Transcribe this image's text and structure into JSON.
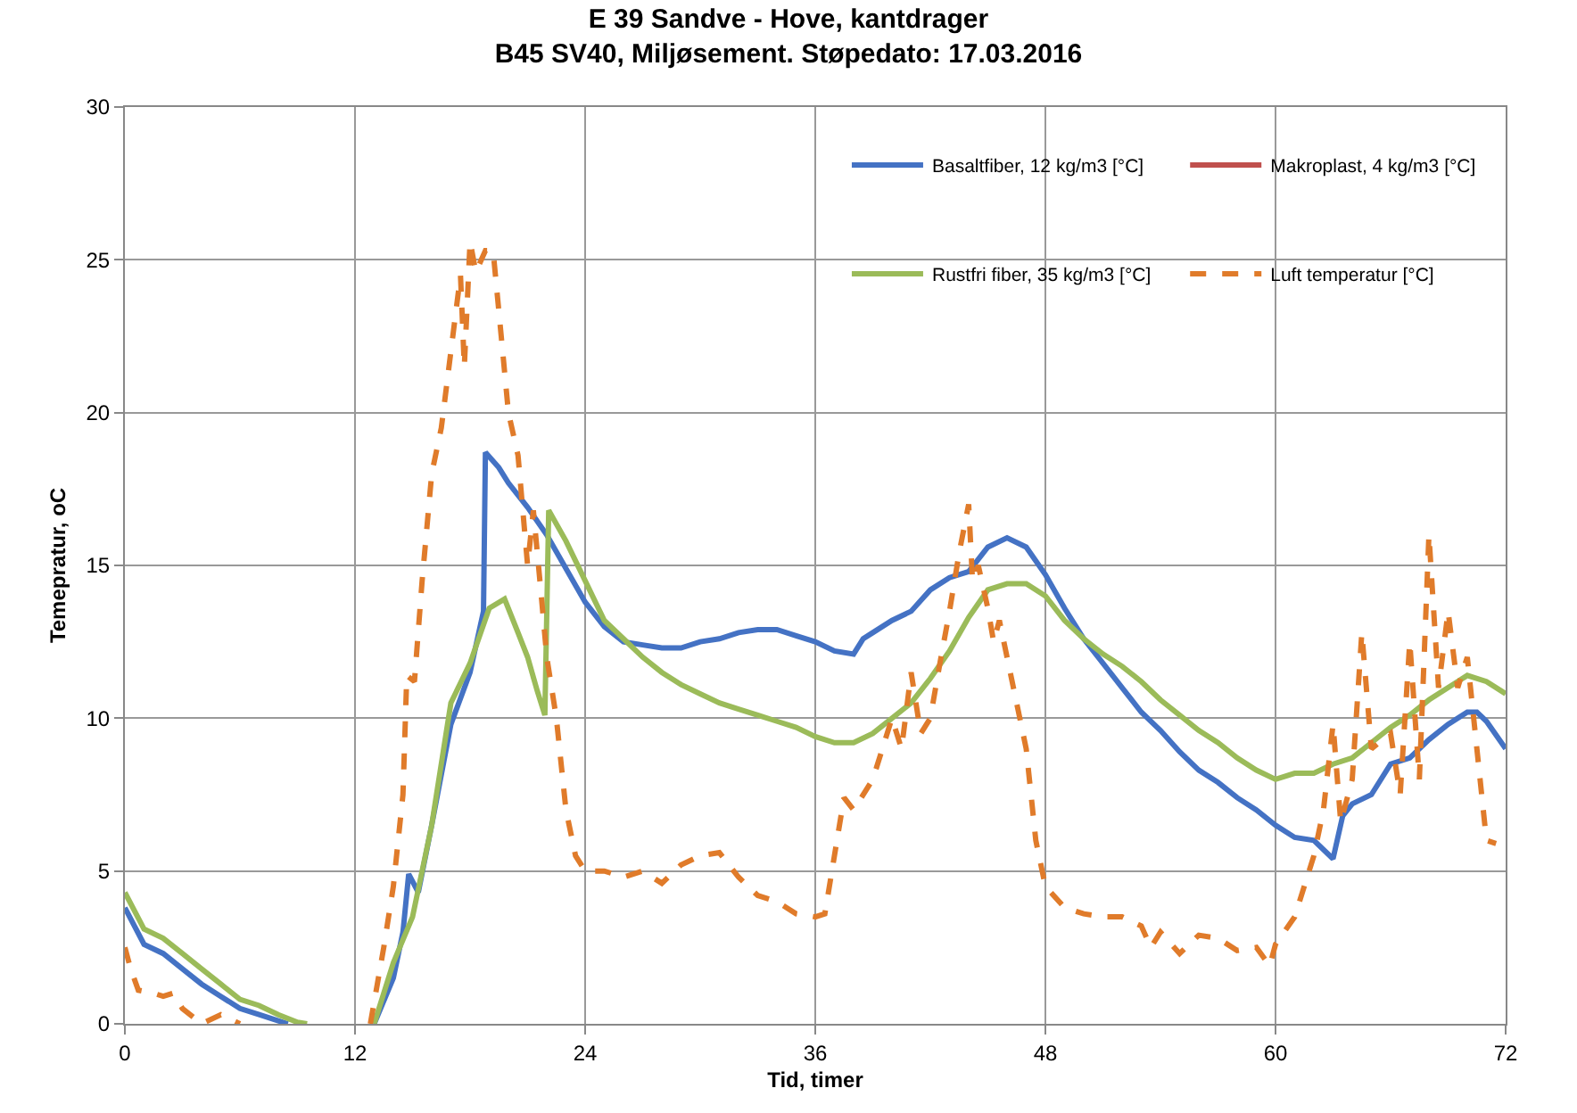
{
  "chart_data": {
    "type": "line",
    "title": "E 39 Sandve - Hove, kantdrager",
    "subtitle": "B45 SV40, Miljøsement. Støpedato: 17.03.2016",
    "xlabel": "Tid, timer",
    "ylabel": "Temepratur, oC",
    "xlim": [
      0,
      72
    ],
    "xticks": [
      0,
      12,
      24,
      36,
      48,
      60,
      72
    ],
    "ylim": [
      0,
      30
    ],
    "yticks": [
      0,
      5,
      10,
      15,
      20,
      25,
      30
    ],
    "grid": true,
    "legend": "top right",
    "marker": "none",
    "series": [
      {
        "name": "Basaltfiber, 12 kg/m3 [°C]",
        "color": "#4472c4",
        "line_style": "solid",
        "x": [
          0,
          1,
          2,
          3,
          4,
          5,
          6,
          7,
          8,
          8.5,
          9,
          13,
          14,
          14.5,
          14.8,
          15.3,
          16,
          17,
          18,
          18.7,
          18.8,
          19.5,
          20,
          21,
          22,
          23,
          24,
          25,
          26,
          27,
          28,
          29,
          30,
          31,
          32,
          33,
          34,
          35,
          36,
          37,
          38,
          38.5,
          39,
          40,
          41,
          42,
          43,
          44,
          45,
          46,
          47,
          48,
          49,
          50,
          51,
          52,
          53,
          54,
          55,
          56,
          57,
          58,
          59,
          60,
          61,
          62,
          63,
          63.5,
          64,
          65,
          66,
          67,
          68,
          69,
          70,
          70.5,
          71,
          72
        ],
        "values": [
          3.8,
          2.6,
          2.3,
          1.8,
          1.3,
          0.9,
          0.5,
          0.3,
          0.1,
          0,
          null,
          0,
          1.5,
          3,
          4.9,
          4.3,
          6.5,
          9.8,
          11.5,
          13.5,
          18.7,
          18.2,
          17.7,
          16.9,
          16,
          14.9,
          13.8,
          13,
          12.5,
          12.4,
          12.3,
          12.3,
          12.5,
          12.6,
          12.8,
          12.9,
          12.9,
          12.7,
          12.5,
          12.2,
          12.1,
          12.6,
          12.8,
          13.2,
          13.5,
          14.2,
          14.6,
          14.8,
          15.6,
          15.9,
          15.6,
          14.7,
          13.6,
          12.6,
          11.8,
          11,
          10.2,
          9.6,
          8.9,
          8.3,
          7.9,
          7.4,
          7,
          6.5,
          6.1,
          6,
          5.4,
          6.8,
          7.2,
          7.5,
          8.5,
          8.7,
          9.3,
          9.8,
          10.2,
          10.2,
          9.9,
          9
        ]
      },
      {
        "name": "Makroplast, 4 kg/m3 [°C]",
        "color": "#c0504d",
        "line_style": "solid",
        "values": [
          null
        ]
      },
      {
        "name": "Rustfri fiber, 35 kg/m3 [°C]",
        "color": "#9bbb59",
        "line_style": "solid",
        "x": [
          0,
          1,
          2,
          3,
          4,
          5,
          6,
          7,
          8,
          9,
          9.5,
          10,
          13,
          14,
          15,
          16,
          17,
          18,
          19,
          19.8,
          20.5,
          21,
          21.5,
          21.9,
          22.1,
          23,
          24,
          25,
          26,
          27,
          28,
          29,
          30,
          31,
          32,
          33,
          34,
          35,
          36,
          37,
          38,
          39,
          40,
          41,
          42,
          43,
          44,
          45,
          46,
          47,
          48,
          49,
          50,
          51,
          52,
          53,
          54,
          55,
          56,
          57,
          58,
          59,
          60,
          61,
          62,
          63,
          64,
          65,
          66,
          67,
          68,
          69,
          70,
          71,
          72
        ],
        "values": [
          4.3,
          3.1,
          2.8,
          2.3,
          1.8,
          1.3,
          0.8,
          0.6,
          0.3,
          0.05,
          0,
          null,
          0,
          2,
          3.5,
          6.5,
          10.5,
          11.8,
          13.6,
          13.9,
          12.8,
          12,
          10.9,
          10.1,
          16.8,
          15.8,
          14.5,
          13.2,
          12.6,
          12,
          11.5,
          11.1,
          10.8,
          10.5,
          10.3,
          10.1,
          9.9,
          9.7,
          9.4,
          9.2,
          9.2,
          9.5,
          10,
          10.5,
          11.3,
          12.2,
          13.3,
          14.2,
          14.4,
          14.4,
          14,
          13.2,
          12.6,
          12.1,
          11.7,
          11.2,
          10.6,
          10.1,
          9.6,
          9.2,
          8.7,
          8.3,
          8,
          8.2,
          8.2,
          8.5,
          8.7,
          9.2,
          9.7,
          10.1,
          10.6,
          11,
          11.4,
          11.2,
          10.8
        ]
      },
      {
        "name": "Luft temperatur [°C]",
        "color": "#e07b2a",
        "line_style": "dashed",
        "x": [
          0,
          0.3,
          0.7,
          1.5,
          2,
          2.5,
          3,
          4,
          5,
          6,
          6.5,
          12.8,
          13.5,
          14,
          14.5,
          14.7,
          15.1,
          15.5,
          16,
          16.5,
          17,
          17.5,
          17.7,
          18,
          18.3,
          18.8,
          19.2,
          19.7,
          20,
          20.5,
          21,
          21.3,
          21.7,
          22,
          22.5,
          23,
          23.5,
          24,
          25,
          26,
          27,
          28,
          29,
          30,
          31,
          32,
          33,
          34,
          35,
          36,
          36.5,
          37,
          37.5,
          38,
          39,
          40,
          40.5,
          41,
          41.5,
          42,
          42.5,
          43,
          43.5,
          44,
          44.2,
          44.5,
          45,
          45.3,
          45.6,
          46,
          47,
          47.5,
          48,
          49,
          50,
          51,
          52,
          53,
          53.5,
          54,
          55,
          56,
          57,
          58,
          59,
          59.7,
          60,
          61,
          62,
          62.5,
          63,
          63.4,
          64,
          64.5,
          65,
          66,
          66.5,
          67,
          67.5,
          68,
          68.5,
          69,
          69.5,
          70,
          70.5,
          71,
          71.5
        ],
        "values": [
          2.5,
          1.8,
          1.1,
          1,
          0.9,
          1,
          0.5,
          0,
          0.3,
          0,
          null,
          0,
          2.5,
          4.5,
          7.5,
          11.4,
          11.2,
          14.5,
          18,
          19.5,
          22,
          24.5,
          21.5,
          25.6,
          24.6,
          25.3,
          25.3,
          22,
          20,
          18.6,
          15,
          16.8,
          14.1,
          12,
          10,
          7,
          5.5,
          5,
          5,
          4.8,
          5,
          4.6,
          5.2,
          5.5,
          5.6,
          4.8,
          4.2,
          4,
          3.6,
          3.5,
          3.6,
          5.5,
          7.4,
          7,
          8,
          10,
          9,
          11.5,
          9.5,
          10,
          11.8,
          13.5,
          15.4,
          17,
          14.5,
          15,
          13.6,
          12.5,
          13.2,
          12,
          9,
          6,
          4.5,
          3.8,
          3.6,
          3.5,
          3.5,
          3.2,
          2.5,
          3,
          2.3,
          2.9,
          2.8,
          2.4,
          2.5,
          1.9,
          2.6,
          3.5,
          5.5,
          7,
          9.8,
          6.6,
          8,
          12.8,
          9,
          9.5,
          7.5,
          12.5,
          8,
          16,
          11,
          13.5,
          11,
          12,
          9,
          6,
          5.9
        ]
      }
    ]
  }
}
